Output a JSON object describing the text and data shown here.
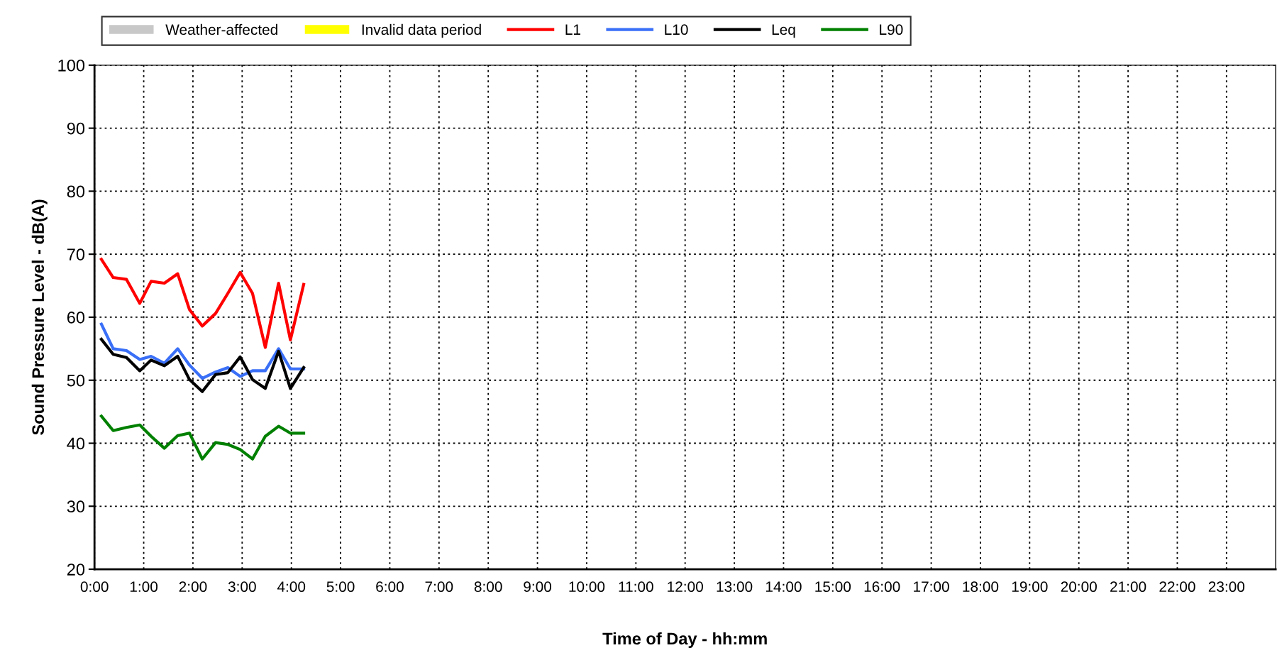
{
  "chart_data": {
    "type": "line",
    "xlabel": "Time of Day - hh:mm",
    "ylabel": "Sound Pressure Level - dB(A)",
    "x": [
      0.14,
      0.38,
      0.65,
      0.92,
      1.15,
      1.42,
      1.69,
      1.93,
      2.19,
      2.46,
      2.71,
      2.96,
      3.21,
      3.47,
      3.74,
      3.98,
      4.25
    ],
    "series": [
      {
        "name": "Weather-affected",
        "type": "area",
        "color": "#c8c8c8",
        "values": [
          null,
          null,
          null,
          null,
          null,
          null,
          null,
          null,
          null,
          null,
          null,
          null,
          null,
          null,
          null,
          null,
          null
        ]
      },
      {
        "name": "Invalid data period",
        "type": "area",
        "color": "#ffff00",
        "values": [
          null,
          null,
          null,
          null,
          null,
          null,
          null,
          null,
          null,
          null,
          null,
          null,
          null,
          null,
          null,
          null,
          null
        ]
      },
      {
        "name": "L1",
        "color": "#ff0000",
        "values": [
          69.2,
          66.3,
          66.0,
          62.2,
          65.7,
          65.4,
          66.9,
          61.2,
          58.6,
          60.6,
          63.8,
          67.1,
          63.8,
          55.2,
          65.4,
          56.4,
          65.2
        ]
      },
      {
        "name": "L10",
        "color": "#3a6ff7",
        "values": [
          58.9,
          55.0,
          54.7,
          53.3,
          53.8,
          52.7,
          55.0,
          52.4,
          50.3,
          51.3,
          52.0,
          50.6,
          51.5,
          51.5,
          55.0,
          51.8,
          51.8
        ]
      },
      {
        "name": "Leq",
        "color": "#000000",
        "values": [
          56.5,
          54.1,
          53.6,
          51.5,
          53.2,
          52.3,
          53.8,
          50.1,
          48.2,
          50.9,
          51.2,
          53.7,
          50.1,
          48.7,
          54.6,
          48.7,
          52.0
        ]
      },
      {
        "name": "L90",
        "color": "#008000",
        "values": [
          44.3,
          42.0,
          42.5,
          42.9,
          41.1,
          39.2,
          41.2,
          41.6,
          37.5,
          40.1,
          39.8,
          39.0,
          37.5,
          41.1,
          42.7,
          41.6,
          41.6
        ]
      }
    ],
    "xlim": [
      0,
      24
    ],
    "xticks": [
      {
        "value": 0,
        "label": "0:00"
      },
      {
        "value": 1,
        "label": "1:00"
      },
      {
        "value": 2,
        "label": "2:00"
      },
      {
        "value": 3,
        "label": "3:00"
      },
      {
        "value": 4,
        "label": "4:00"
      },
      {
        "value": 5,
        "label": "5:00"
      },
      {
        "value": 6,
        "label": "6:00"
      },
      {
        "value": 7,
        "label": "7:00"
      },
      {
        "value": 8,
        "label": "8:00"
      },
      {
        "value": 9,
        "label": "9:00"
      },
      {
        "value": 10,
        "label": "10:00"
      },
      {
        "value": 11,
        "label": "11:00"
      },
      {
        "value": 12,
        "label": "12:00"
      },
      {
        "value": 13,
        "label": "13:00"
      },
      {
        "value": 14,
        "label": "14:00"
      },
      {
        "value": 15,
        "label": "15:00"
      },
      {
        "value": 16,
        "label": "16:00"
      },
      {
        "value": 17,
        "label": "17:00"
      },
      {
        "value": 18,
        "label": "18:00"
      },
      {
        "value": 19,
        "label": "19:00"
      },
      {
        "value": 20,
        "label": "20:00"
      },
      {
        "value": 21,
        "label": "21:00"
      },
      {
        "value": 22,
        "label": "22:00"
      },
      {
        "value": 23,
        "label": "23:00"
      }
    ],
    "ylim": [
      20,
      100
    ],
    "yticks": [
      20,
      30,
      40,
      50,
      60,
      70,
      80,
      90,
      100
    ],
    "grid": true,
    "legend": "top",
    "marker": "none",
    "line_style": "solid"
  }
}
